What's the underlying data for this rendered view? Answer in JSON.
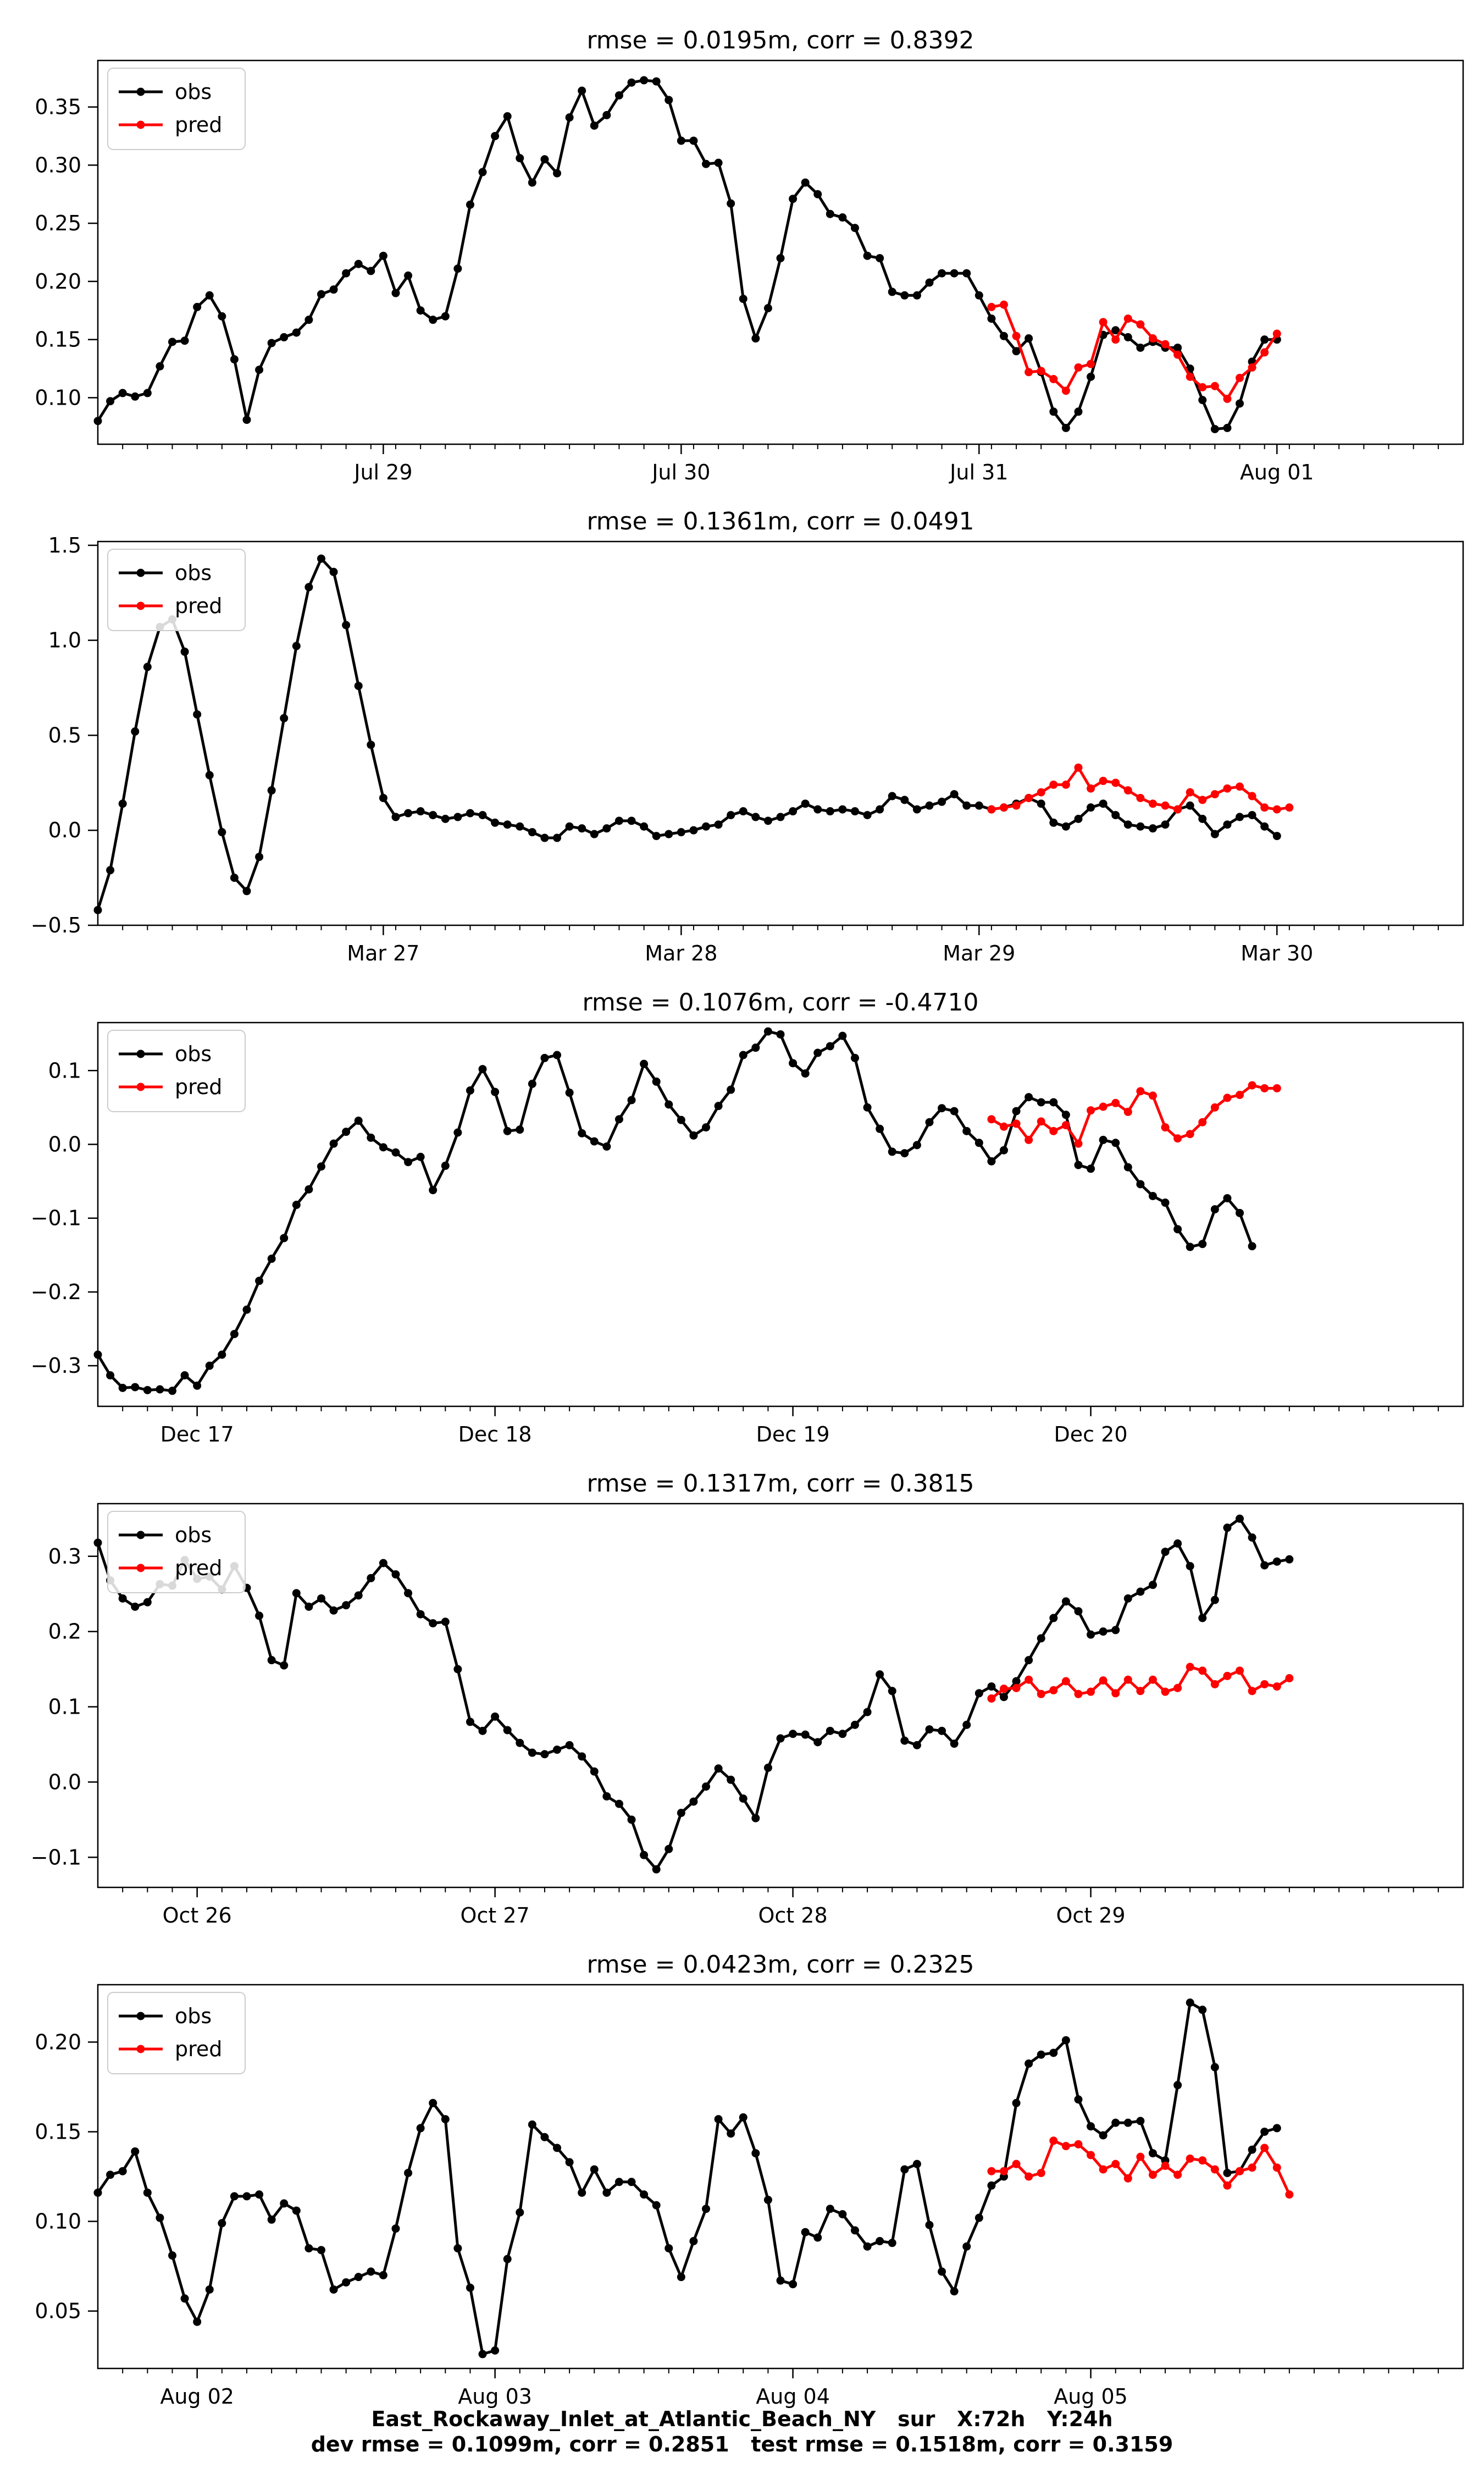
{
  "footer": {
    "line1": "East_Rockaway_Inlet_at_Atlantic_Beach_NY   sur   X:72h   Y:24h",
    "line2": "dev rmse = 0.1099m, corr = 0.2851   test rmse = 0.1518m, corr = 0.3159"
  },
  "colors": {
    "obs": "#000000",
    "pred": "#ff0000"
  },
  "chart_data": [
    {
      "type": "line",
      "title": "rmse = 0.0195m, corr = 0.8392",
      "xlim": [
        0,
        110
      ],
      "ylim": [
        0.06,
        0.39
      ],
      "yticks": [
        0.1,
        0.15,
        0.2,
        0.25,
        0.3,
        0.35
      ],
      "ytick_labels": [
        "0.10",
        "0.15",
        "0.20",
        "0.25",
        "0.30",
        "0.35"
      ],
      "xticks": [
        {
          "x": 23,
          "label": "Jul 29"
        },
        {
          "x": 47,
          "label": "Jul 30"
        },
        {
          "x": 71,
          "label": "Jul 31"
        },
        {
          "x": 95,
          "label": "Aug 01"
        }
      ],
      "legend": [
        "obs",
        "pred"
      ],
      "legend_loc": "upper left",
      "series": [
        {
          "name": "obs",
          "x0": 0,
          "values": [
            0.08,
            0.097,
            0.104,
            0.101,
            0.104,
            0.127,
            0.148,
            0.149,
            0.178,
            0.188,
            0.17,
            0.133,
            0.081,
            0.124,
            0.147,
            0.152,
            0.156,
            0.167,
            0.189,
            0.193,
            0.207,
            0.215,
            0.209,
            0.222,
            0.19,
            0.205,
            0.175,
            0.167,
            0.17,
            0.211,
            0.266,
            0.294,
            0.325,
            0.342,
            0.306,
            0.285,
            0.305,
            0.293,
            0.341,
            0.364,
            0.334,
            0.343,
            0.36,
            0.371,
            0.373,
            0.372,
            0.356,
            0.321,
            0.321,
            0.301,
            0.302,
            0.267,
            0.185,
            0.151,
            0.177,
            0.22,
            0.271,
            0.285,
            0.275,
            0.258,
            0.255,
            0.246,
            0.222,
            0.22,
            0.191,
            0.188,
            0.188,
            0.199,
            0.207,
            0.207,
            0.207,
            0.188,
            0.168,
            0.153,
            0.14,
            0.151,
            0.122,
            0.088,
            0.074,
            0.088,
            0.118,
            0.154,
            0.158,
            0.152,
            0.143,
            0.148,
            0.143,
            0.143,
            0.125,
            0.098,
            0.073,
            0.074,
            0.095,
            0.131,
            0.15,
            0.15
          ]
        },
        {
          "name": "pred",
          "x0": 72,
          "values": [
            0.178,
            0.18,
            0.153,
            0.122,
            0.123,
            0.116,
            0.106,
            0.126,
            0.129,
            0.165,
            0.15,
            0.168,
            0.163,
            0.151,
            0.146,
            0.137,
            0.118,
            0.109,
            0.11,
            0.099,
            0.117,
            0.126,
            0.139,
            0.155
          ]
        }
      ]
    },
    {
      "type": "line",
      "title": "rmse = 0.1361m, corr = 0.0491",
      "xlim": [
        0,
        110
      ],
      "ylim": [
        -0.5,
        1.52
      ],
      "yticks": [
        -0.5,
        0.0,
        0.5,
        1.0,
        1.5
      ],
      "ytick_labels": [
        "−0.5",
        "0.0",
        "0.5",
        "1.0",
        "1.5"
      ],
      "xticks": [
        {
          "x": 23,
          "label": "Mar 27"
        },
        {
          "x": 47,
          "label": "Mar 28"
        },
        {
          "x": 71,
          "label": "Mar 29"
        },
        {
          "x": 95,
          "label": "Mar 30"
        }
      ],
      "legend": [
        "obs",
        "pred"
      ],
      "legend_loc": "upper left",
      "series": [
        {
          "name": "obs",
          "x0": 0,
          "values": [
            -0.42,
            -0.21,
            0.14,
            0.52,
            0.86,
            1.07,
            1.11,
            0.94,
            0.61,
            0.29,
            -0.01,
            -0.25,
            -0.32,
            -0.14,
            0.21,
            0.59,
            0.97,
            1.28,
            1.43,
            1.36,
            1.08,
            0.76,
            0.45,
            0.17,
            0.07,
            0.09,
            0.1,
            0.08,
            0.06,
            0.07,
            0.09,
            0.08,
            0.04,
            0.03,
            0.02,
            -0.01,
            -0.04,
            -0.04,
            0.02,
            0.01,
            -0.02,
            0.01,
            0.05,
            0.05,
            0.02,
            -0.03,
            -0.02,
            -0.01,
            0.0,
            0.02,
            0.03,
            0.08,
            0.1,
            0.07,
            0.05,
            0.07,
            0.1,
            0.14,
            0.11,
            0.1,
            0.11,
            0.1,
            0.08,
            0.11,
            0.18,
            0.16,
            0.11,
            0.13,
            0.15,
            0.19,
            0.13,
            0.13,
            0.11,
            0.12,
            0.14,
            0.17,
            0.14,
            0.04,
            0.02,
            0.06,
            0.12,
            0.14,
            0.08,
            0.03,
            0.02,
            0.01,
            0.03,
            0.11,
            0.13,
            0.06,
            -0.02,
            0.03,
            0.07,
            0.08,
            0.02,
            -0.03
          ]
        },
        {
          "name": "pred",
          "x0": 72,
          "values": [
            0.11,
            0.12,
            0.13,
            0.17,
            0.2,
            0.24,
            0.24,
            0.33,
            0.22,
            0.26,
            0.25,
            0.21,
            0.17,
            0.14,
            0.13,
            0.11,
            0.2,
            0.16,
            0.19,
            0.22,
            0.23,
            0.18,
            0.12,
            0.11,
            0.12
          ]
        }
      ]
    },
    {
      "type": "line",
      "title": "rmse = 0.1076m, corr = -0.4710",
      "xlim": [
        0,
        110
      ],
      "ylim": [
        -0.355,
        0.165
      ],
      "yticks": [
        -0.3,
        -0.2,
        -0.1,
        0.0,
        0.1
      ],
      "ytick_labels": [
        "−0.3",
        "−0.2",
        "−0.1",
        "0.0",
        "0.1"
      ],
      "xticks": [
        {
          "x": 8,
          "label": "Dec 17"
        },
        {
          "x": 32,
          "label": "Dec 18"
        },
        {
          "x": 56,
          "label": "Dec 19"
        },
        {
          "x": 80,
          "label": "Dec 20"
        }
      ],
      "legend": [
        "obs",
        "pred"
      ],
      "legend_loc": "upper left",
      "series": [
        {
          "name": "obs",
          "x0": 0,
          "values": [
            -0.285,
            -0.313,
            -0.33,
            -0.329,
            -0.333,
            -0.332,
            -0.334,
            -0.313,
            -0.327,
            -0.3,
            -0.285,
            -0.257,
            -0.224,
            -0.185,
            -0.155,
            -0.127,
            -0.082,
            -0.061,
            -0.03,
            0.001,
            0.017,
            0.032,
            0.009,
            -0.004,
            -0.011,
            -0.024,
            -0.017,
            -0.062,
            -0.029,
            0.016,
            0.073,
            0.102,
            0.071,
            0.018,
            0.02,
            0.082,
            0.117,
            0.121,
            0.07,
            0.015,
            0.004,
            -0.003,
            0.034,
            0.06,
            0.109,
            0.085,
            0.054,
            0.033,
            0.012,
            0.023,
            0.052,
            0.074,
            0.121,
            0.131,
            0.153,
            0.149,
            0.11,
            0.096,
            0.124,
            0.133,
            0.147,
            0.117,
            0.05,
            0.021,
            -0.01,
            -0.012,
            -0.001,
            0.03,
            0.049,
            0.045,
            0.018,
            0.002,
            -0.023,
            -0.008,
            0.045,
            0.064,
            0.057,
            0.057,
            0.04,
            -0.028,
            -0.033,
            0.006,
            0.002,
            -0.031,
            -0.054,
            -0.07,
            -0.079,
            -0.115,
            -0.139,
            -0.135,
            -0.088,
            -0.073,
            -0.093,
            -0.138
          ]
        },
        {
          "name": "pred",
          "x0": 72,
          "values": [
            0.034,
            0.024,
            0.028,
            0.006,
            0.031,
            0.018,
            0.026,
            0.001,
            0.046,
            0.051,
            0.056,
            0.044,
            0.072,
            0.066,
            0.023,
            0.008,
            0.014,
            0.03,
            0.05,
            0.063,
            0.067,
            0.08,
            0.076,
            0.076
          ]
        }
      ]
    },
    {
      "type": "line",
      "title": "rmse = 0.1317m, corr = 0.3815",
      "xlim": [
        0,
        110
      ],
      "ylim": [
        -0.14,
        0.37
      ],
      "yticks": [
        -0.1,
        0.0,
        0.1,
        0.2,
        0.3
      ],
      "ytick_labels": [
        "−0.1",
        "0.0",
        "0.1",
        "0.2",
        "0.3"
      ],
      "xticks": [
        {
          "x": 8,
          "label": "Oct 26"
        },
        {
          "x": 32,
          "label": "Oct 27"
        },
        {
          "x": 56,
          "label": "Oct 28"
        },
        {
          "x": 80,
          "label": "Oct 29"
        }
      ],
      "legend": [
        "obs",
        "pred"
      ],
      "legend_loc": "upper left",
      "series": [
        {
          "name": "obs",
          "x0": 0,
          "values": [
            0.318,
            0.268,
            0.244,
            0.233,
            0.239,
            0.263,
            0.261,
            0.295,
            0.27,
            0.273,
            0.256,
            0.287,
            0.258,
            0.221,
            0.162,
            0.155,
            0.251,
            0.233,
            0.244,
            0.228,
            0.235,
            0.248,
            0.271,
            0.291,
            0.276,
            0.251,
            0.223,
            0.211,
            0.213,
            0.15,
            0.08,
            0.068,
            0.087,
            0.069,
            0.052,
            0.039,
            0.037,
            0.043,
            0.049,
            0.034,
            0.014,
            -0.019,
            -0.029,
            -0.05,
            -0.097,
            -0.116,
            -0.089,
            -0.041,
            -0.026,
            -0.006,
            0.018,
            0.003,
            -0.022,
            -0.048,
            0.019,
            0.058,
            0.064,
            0.063,
            0.053,
            0.068,
            0.064,
            0.076,
            0.093,
            0.143,
            0.121,
            0.055,
            0.049,
            0.07,
            0.068,
            0.051,
            0.076,
            0.118,
            0.127,
            0.113,
            0.134,
            0.162,
            0.191,
            0.218,
            0.24,
            0.227,
            0.196,
            0.2,
            0.202,
            0.244,
            0.253,
            0.262,
            0.306,
            0.317,
            0.287,
            0.218,
            0.242,
            0.338,
            0.35,
            0.325,
            0.288,
            0.293,
            0.296
          ]
        },
        {
          "name": "pred",
          "x0": 72,
          "values": [
            0.111,
            0.124,
            0.125,
            0.136,
            0.117,
            0.122,
            0.134,
            0.117,
            0.12,
            0.135,
            0.118,
            0.136,
            0.121,
            0.136,
            0.12,
            0.125,
            0.153,
            0.148,
            0.13,
            0.141,
            0.148,
            0.121,
            0.13,
            0.127,
            0.138
          ]
        }
      ]
    },
    {
      "type": "line",
      "title": "rmse = 0.0423m, corr = 0.2325",
      "xlim": [
        0,
        110
      ],
      "ylim": [
        0.018,
        0.232
      ],
      "yticks": [
        0.05,
        0.1,
        0.15,
        0.2
      ],
      "ytick_labels": [
        "0.05",
        "0.10",
        "0.15",
        "0.20"
      ],
      "xticks": [
        {
          "x": 8,
          "label": "Aug 02"
        },
        {
          "x": 32,
          "label": "Aug 03"
        },
        {
          "x": 56,
          "label": "Aug 04"
        },
        {
          "x": 80,
          "label": "Aug 05"
        }
      ],
      "legend": [
        "obs",
        "pred"
      ],
      "legend_loc": "upper left",
      "series": [
        {
          "name": "obs",
          "x0": 0,
          "values": [
            0.116,
            0.126,
            0.128,
            0.139,
            0.116,
            0.102,
            0.081,
            0.057,
            0.044,
            0.062,
            0.099,
            0.114,
            0.114,
            0.115,
            0.101,
            0.11,
            0.106,
            0.085,
            0.084,
            0.062,
            0.066,
            0.069,
            0.072,
            0.07,
            0.096,
            0.127,
            0.152,
            0.166,
            0.157,
            0.085,
            0.063,
            0.026,
            0.028,
            0.079,
            0.105,
            0.154,
            0.147,
            0.141,
            0.133,
            0.116,
            0.129,
            0.116,
            0.122,
            0.122,
            0.115,
            0.109,
            0.085,
            0.069,
            0.089,
            0.107,
            0.157,
            0.149,
            0.158,
            0.138,
            0.112,
            0.067,
            0.065,
            0.094,
            0.091,
            0.107,
            0.104,
            0.095,
            0.086,
            0.089,
            0.088,
            0.129,
            0.132,
            0.098,
            0.072,
            0.061,
            0.086,
            0.102,
            0.12,
            0.125,
            0.166,
            0.188,
            0.193,
            0.194,
            0.201,
            0.168,
            0.153,
            0.148,
            0.155,
            0.155,
            0.156,
            0.138,
            0.134,
            0.176,
            0.222,
            0.218,
            0.186,
            0.127,
            0.128,
            0.14,
            0.15,
            0.152
          ]
        },
        {
          "name": "pred",
          "x0": 72,
          "values": [
            0.128,
            0.128,
            0.132,
            0.125,
            0.127,
            0.145,
            0.142,
            0.143,
            0.137,
            0.129,
            0.132,
            0.124,
            0.136,
            0.126,
            0.131,
            0.126,
            0.135,
            0.134,
            0.129,
            0.12,
            0.128,
            0.13,
            0.141,
            0.13,
            0.115
          ]
        }
      ]
    }
  ]
}
